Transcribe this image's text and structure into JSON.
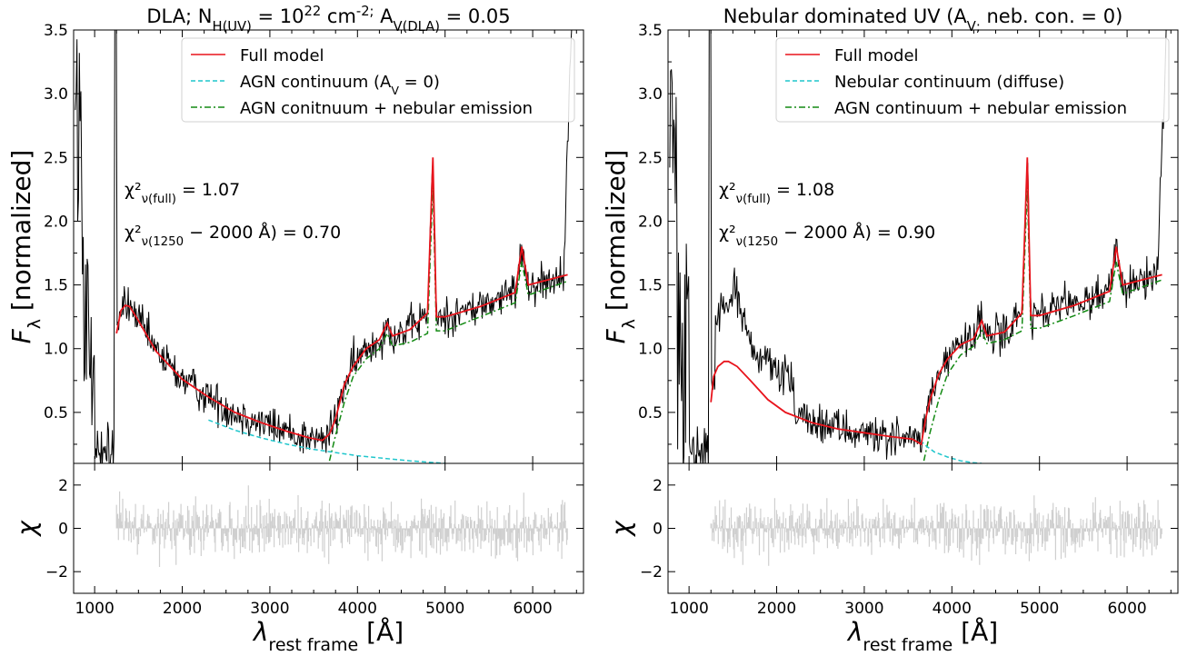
{
  "chart_data": [
    {
      "type": "line",
      "title": "DLA; N_H(UV) = 10^22 cm^-2; A_V(DLA) = 0.05",
      "xlabel": "λ_rest frame [Å]",
      "ylabel": "F_λ [normalized]",
      "residual_ylabel": "χ",
      "xlim": [
        760,
        6580
      ],
      "ylim": [
        0.1,
        3.5
      ],
      "residual_ylim": [
        -3.0,
        3.0
      ],
      "x_ticks": [
        1000,
        2000,
        3000,
        4000,
        5000,
        6000
      ],
      "y_ticks": [
        0.5,
        1.0,
        1.5,
        2.0,
        2.5,
        3.0,
        3.5
      ],
      "residual_ticks": [
        -2,
        0,
        2
      ],
      "legend_position": "top-right",
      "annotations": [
        "χ²_ν(full) = 1.07",
        "χ²_ν(1250 − 2000 Å) = 0.70"
      ],
      "series": [
        {
          "name": "Full model",
          "style": "solid",
          "color": "#e8141c",
          "x": [
            1250,
            1300,
            1350,
            1400,
            1500,
            1700,
            2000,
            2300,
            2600,
            2900,
            3200,
            3450,
            3600,
            3680,
            3750,
            3850,
            3950,
            4100,
            4250,
            4340,
            4400,
            4600,
            4800,
            4861,
            4900,
            5000,
            5400,
            5800,
            5876,
            5950,
            6400
          ],
          "y": [
            1.12,
            1.3,
            1.34,
            1.33,
            1.22,
            0.98,
            0.76,
            0.62,
            0.5,
            0.42,
            0.35,
            0.3,
            0.28,
            0.33,
            0.45,
            0.72,
            0.86,
            1.0,
            1.07,
            1.2,
            1.1,
            1.15,
            1.28,
            2.5,
            1.25,
            1.25,
            1.33,
            1.44,
            1.8,
            1.5,
            1.58
          ]
        },
        {
          "name": "AGN continuum (A_V = 0)",
          "style": "dashed",
          "color": "#1fc6cc",
          "x": [
            2300,
            2600,
            2900,
            3200,
            3500,
            3700,
            4000,
            4300,
            4600,
            4900,
            5000
          ],
          "y": [
            0.44,
            0.36,
            0.3,
            0.25,
            0.21,
            0.19,
            0.16,
            0.14,
            0.12,
            0.105,
            0.1
          ]
        },
        {
          "name": "AGN conitnuum + nebular emission",
          "style": "dashdot",
          "color": "#138a13",
          "x": [
            3680,
            3750,
            3850,
            3950,
            4100,
            4250,
            4340,
            4400,
            4600,
            4800,
            4861,
            4900,
            5000,
            5400,
            5800,
            5876,
            5950,
            6400
          ],
          "y": [
            0.12,
            0.32,
            0.58,
            0.78,
            0.92,
            1.0,
            1.12,
            1.02,
            1.05,
            1.12,
            2.3,
            1.14,
            1.14,
            1.25,
            1.36,
            1.68,
            1.42,
            1.53
          ]
        }
      ]
    },
    {
      "type": "line",
      "title": "Nebular dominated UV (A_V; neb. con. = 0)",
      "xlabel": "λ_rest frame [Å]",
      "ylabel": "F_λ [normalized]",
      "residual_ylabel": "χ",
      "xlim": [
        760,
        6580
      ],
      "ylim": [
        0.1,
        3.5
      ],
      "residual_ylim": [
        -3.0,
        3.0
      ],
      "x_ticks": [
        1000,
        2000,
        3000,
        4000,
        5000,
        6000
      ],
      "y_ticks": [
        0.5,
        1.0,
        1.5,
        2.0,
        2.5,
        3.0,
        3.5
      ],
      "residual_ticks": [
        -2,
        0,
        2
      ],
      "legend_position": "top-right",
      "annotations": [
        "χ²_ν(full) = 1.08",
        "χ²_ν(1250 − 2000 Å) = 0.90"
      ],
      "series": [
        {
          "name": "Full model",
          "style": "solid",
          "color": "#e8141c",
          "x": [
            1250,
            1280,
            1330,
            1400,
            1450,
            1550,
            1700,
            1900,
            2100,
            2400,
            2700,
            3000,
            3300,
            3550,
            3650,
            3700,
            3750,
            3850,
            3950,
            4100,
            4250,
            4340,
            4400,
            4600,
            4800,
            4861,
            4900,
            5000,
            5400,
            5800,
            5876,
            5950,
            6400
          ],
          "y": [
            0.58,
            0.78,
            0.86,
            0.9,
            0.9,
            0.86,
            0.75,
            0.6,
            0.5,
            0.42,
            0.37,
            0.34,
            0.31,
            0.29,
            0.25,
            0.45,
            0.6,
            0.8,
            0.92,
            1.03,
            1.08,
            1.22,
            1.1,
            1.13,
            1.28,
            2.5,
            1.26,
            1.26,
            1.34,
            1.45,
            1.8,
            1.5,
            1.58
          ]
        },
        {
          "name": "Nebular continuum (diffuse)",
          "style": "dashed",
          "color": "#1fc6cc",
          "x": [
            3640,
            3700,
            3800,
            3950,
            4100,
            4250,
            4340
          ],
          "y": [
            0.28,
            0.24,
            0.19,
            0.15,
            0.12,
            0.105,
            0.1
          ]
        },
        {
          "name": "AGN continuum + nebular emission",
          "style": "dashdot",
          "color": "#138a13",
          "x": [
            3680,
            3750,
            3850,
            3950,
            4100,
            4250,
            4340,
            4400,
            4600,
            4800,
            4861,
            4900,
            5000,
            5400,
            5800,
            5876,
            5950,
            6400
          ],
          "y": [
            0.12,
            0.34,
            0.6,
            0.8,
            0.95,
            1.02,
            1.14,
            1.04,
            1.07,
            1.14,
            2.3,
            1.16,
            1.16,
            1.26,
            1.37,
            1.68,
            1.43,
            1.54
          ]
        }
      ]
    }
  ]
}
